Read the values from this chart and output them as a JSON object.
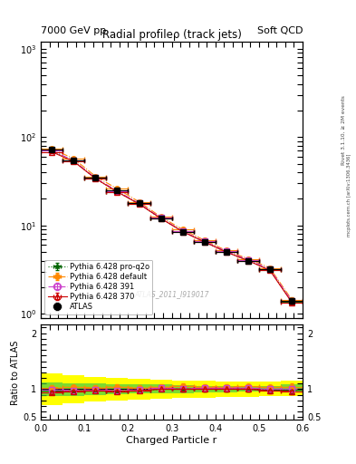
{
  "title_left": "7000 GeV pp",
  "title_right": "Soft QCD",
  "main_title": "Radial profileρ (track jets)",
  "xlabel": "Charged Particle r",
  "ylabel_ratio": "Ratio to ATLAS",
  "watermark": "ATLAS_2011_I919017",
  "right_label_top": "Rivet 3.1.10, ≥ 2M events",
  "right_label_bottom": "mcplots.cern.ch [arXiv:1306.3436]",
  "r_centers": [
    0.025,
    0.075,
    0.125,
    0.175,
    0.225,
    0.275,
    0.325,
    0.375,
    0.425,
    0.475,
    0.525,
    0.575
  ],
  "r_edges": [
    0.0,
    0.05,
    0.1,
    0.15,
    0.2,
    0.25,
    0.3,
    0.35,
    0.4,
    0.45,
    0.5,
    0.55,
    0.6
  ],
  "atlas_y": [
    72,
    55,
    35,
    25,
    18,
    12,
    8.5,
    6.5,
    5.0,
    4.0,
    3.2,
    1.4
  ],
  "atlas_yerr": [
    3,
    2.5,
    1.5,
    1.0,
    0.8,
    0.5,
    0.4,
    0.3,
    0.25,
    0.2,
    0.15,
    0.1
  ],
  "py370_y": [
    68,
    53,
    34,
    24,
    17.5,
    12.0,
    8.5,
    6.5,
    5.0,
    4.0,
    3.1,
    1.35
  ],
  "py370_yerr": [
    2,
    1.5,
    1.0,
    0.7,
    0.5,
    0.4,
    0.3,
    0.25,
    0.2,
    0.15,
    0.12,
    0.08
  ],
  "py391_y": [
    71,
    54,
    34.5,
    24.5,
    17.8,
    12.2,
    8.6,
    6.6,
    5.1,
    4.1,
    3.2,
    1.4
  ],
  "py391_yerr": [
    2.5,
    2,
    1.2,
    0.8,
    0.6,
    0.4,
    0.3,
    0.25,
    0.2,
    0.15,
    0.12,
    0.08
  ],
  "pydef_y": [
    74,
    57,
    36,
    26,
    18.5,
    12.5,
    9.0,
    6.8,
    5.2,
    4.2,
    3.3,
    1.45
  ],
  "pydef_yerr": [
    3,
    2,
    1.5,
    1.0,
    0.7,
    0.5,
    0.4,
    0.3,
    0.22,
    0.18,
    0.14,
    0.09
  ],
  "pyq2o_y": [
    70,
    54,
    34,
    24,
    17.5,
    12.0,
    8.6,
    6.5,
    5.0,
    4.0,
    3.15,
    1.38
  ],
  "pyq2o_yerr": [
    2.5,
    1.8,
    1.2,
    0.8,
    0.6,
    0.4,
    0.3,
    0.25,
    0.2,
    0.15,
    0.12,
    0.08
  ],
  "atlas_color": "#000000",
  "py370_color": "#cc0000",
  "py391_color": "#cc44cc",
  "pydef_color": "#ff8800",
  "pyq2o_color": "#006600",
  "band_yellow_lo": [
    0.72,
    0.75,
    0.78,
    0.8,
    0.82,
    0.83,
    0.84,
    0.85,
    0.86,
    0.86,
    0.87,
    0.87
  ],
  "band_yellow_hi": [
    1.28,
    1.25,
    1.22,
    1.2,
    1.18,
    1.17,
    1.16,
    1.15,
    1.14,
    1.14,
    1.13,
    1.15
  ],
  "band_green_lo": [
    0.88,
    0.88,
    0.9,
    0.91,
    0.92,
    0.92,
    0.93,
    0.94,
    0.94,
    0.95,
    0.95,
    0.96
  ],
  "band_green_hi": [
    1.12,
    1.1,
    1.1,
    1.09,
    1.08,
    1.08,
    1.07,
    1.06,
    1.06,
    1.05,
    1.05,
    1.08
  ],
  "xlim": [
    0.0,
    0.6
  ],
  "ylim_main": [
    0.9,
    1200
  ],
  "ylim_ratio": [
    0.45,
    2.15
  ]
}
